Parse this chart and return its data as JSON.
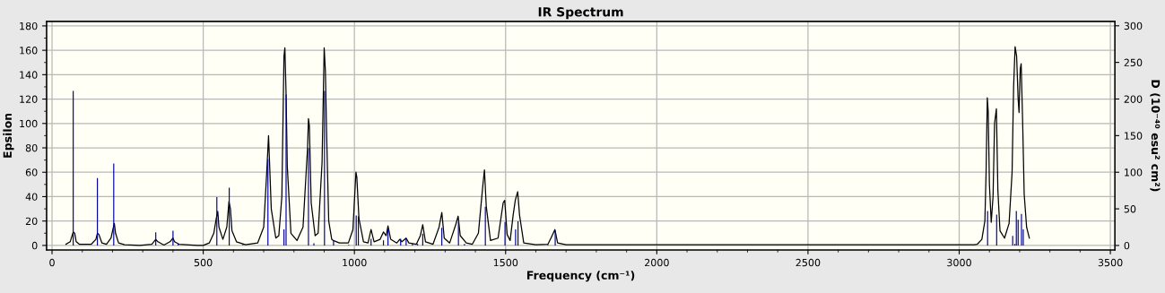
{
  "chart_data": {
    "type": "line",
    "title": "IR Spectrum",
    "xlabel": "Frequency (cm⁻¹)",
    "ylabel": "Epsilon",
    "y2label": "D (10⁻⁴⁰ esu² cm²)",
    "xlim": [
      -18,
      3515
    ],
    "ylim": [
      -3.7,
      183.7
    ],
    "y2lim": [
      -6.1,
      306
    ],
    "xticks": [
      0,
      {
        "value": 100,
        "label": null
      },
      {
        "value": 200,
        "label": null
      },
      {
        "value": 300,
        "label": null
      },
      {
        "value": 400,
        "label": null
      },
      500,
      {
        "value": 600,
        "label": null
      },
      {
        "value": 700,
        "label": null
      },
      {
        "value": 800,
        "label": null
      },
      {
        "value": 900,
        "label": null
      },
      1000,
      {
        "value": 1100,
        "label": null
      },
      {
        "value": 1200,
        "label": null
      },
      {
        "value": 1300,
        "label": null
      },
      {
        "value": 1400,
        "label": null
      },
      1500,
      {
        "value": 1600,
        "label": null
      },
      {
        "value": 1700,
        "label": null
      },
      {
        "value": 1800,
        "label": null
      },
      {
        "value": 1900,
        "label": null
      },
      2000,
      {
        "value": 2100,
        "label": null
      },
      {
        "value": 2200,
        "label": null
      },
      {
        "value": 2300,
        "label": null
      },
      {
        "value": 2400,
        "label": null
      },
      2500,
      {
        "value": 2600,
        "label": null
      },
      {
        "value": 2700,
        "label": null
      },
      {
        "value": 2800,
        "label": null
      },
      {
        "value": 2900,
        "label": null
      },
      3000,
      {
        "value": 3100,
        "label": null
      },
      {
        "value": 3200,
        "label": null
      },
      {
        "value": 3300,
        "label": null
      },
      {
        "value": 3400,
        "label": null
      },
      3500
    ],
    "yticks": [
      0,
      {
        "value": 10,
        "label": null
      },
      20,
      {
        "value": 30,
        "label": null
      },
      40,
      {
        "value": 50,
        "label": null
      },
      60,
      {
        "value": 70,
        "label": null
      },
      80,
      {
        "value": 90,
        "label": null
      },
      100,
      {
        "value": 110,
        "label": null
      },
      120,
      {
        "value": 130,
        "label": null
      },
      140,
      {
        "value": 150,
        "label": null
      },
      160,
      {
        "value": 170,
        "label": null
      },
      180
    ],
    "y2ticks": [
      0,
      50,
      100,
      150,
      200,
      250,
      300
    ],
    "grid": true,
    "series": [
      {
        "color": "#000000",
        "x": [
          46,
          60,
          70,
          75,
          80,
          90,
          130,
          145,
          150,
          155,
          165,
          180,
          195,
          202,
          206,
          210,
          220,
          240,
          290,
          330,
          343,
          350,
          370,
          390,
          400,
          405,
          420,
          480,
          500,
          520,
          535,
          543,
          548,
          552,
          565,
          578,
          585,
          590,
          595,
          610,
          640,
          680,
          700,
          710,
          714,
          716,
          719,
          725,
          740,
          750,
          760,
          767,
          770,
          774,
          778,
          790,
          810,
          830,
          845,
          848,
          851,
          857,
          870,
          880,
          893,
          900,
          904,
          908,
          915,
          925,
          930,
          950,
          980,
          995,
          1005,
          1008,
          1015,
          1030,
          1045,
          1055,
          1065,
          1085,
          1096,
          1105,
          1111,
          1120,
          1140,
          1150,
          1157,
          1171,
          1180,
          1205,
          1218,
          1226,
          1235,
          1260,
          1280,
          1289,
          1297,
          1315,
          1335,
          1343,
          1350,
          1370,
          1390,
          1410,
          1425,
          1430,
          1436,
          1450,
          1475,
          1492,
          1497,
          1505,
          1515,
          1525,
          1532,
          1540,
          1546,
          1560,
          1600,
          1640,
          1650,
          1663,
          1672,
          1700,
          3050,
          3060,
          3075,
          3085,
          3089,
          3093,
          3096,
          3100,
          3106,
          3112,
          3117,
          3123,
          3128,
          3135,
          3150,
          3165,
          3175,
          3180,
          3185,
          3190,
          3195,
          3198,
          3202,
          3205,
          3210,
          3215,
          3223,
          3232
        ],
        "values": [
          1,
          3,
          11,
          10,
          3,
          1,
          1,
          5,
          10,
          9,
          2,
          1,
          6,
          14,
          18,
          10,
          2,
          0.5,
          0,
          1,
          5,
          3,
          0.3,
          3,
          6,
          3,
          1,
          0,
          0,
          2,
          10,
          22,
          28,
          15,
          5,
          15,
          36,
          30,
          12,
          3,
          0.5,
          2,
          15,
          60,
          80,
          90,
          70,
          30,
          6,
          8,
          40,
          155,
          162,
          124,
          65,
          10,
          4,
          15,
          80,
          104,
          98,
          35,
          8,
          10,
          68,
          162,
          143,
          92,
          20,
          5,
          4,
          2,
          2,
          13,
          60,
          56,
          22,
          3,
          2,
          13,
          3,
          5,
          11,
          8,
          16,
          5,
          2,
          5,
          3,
          6,
          2,
          1,
          8,
          17,
          3,
          1,
          15,
          27,
          6,
          2,
          17,
          24,
          8,
          2,
          1,
          10,
          50,
          62,
          32,
          4,
          6,
          35,
          37,
          9,
          4,
          25,
          37,
          44,
          25,
          2,
          0.5,
          1,
          6,
          13,
          2,
          0.5,
          0.5,
          1,
          5,
          20,
          60,
          121,
          110,
          50,
          19,
          40,
          100,
          112,
          45,
          12,
          6,
          18,
          60,
          130,
          163,
          155,
          120,
          109,
          145,
          149,
          100,
          42,
          15,
          6
        ]
      },
      {
        "type": "bar",
        "axis": "y2",
        "color": "#0000a0",
        "x": [
          70,
          150,
          204,
          343,
          400,
          417,
          545,
          586,
          631,
          714,
          767,
          774,
          848,
          866,
          901,
          931,
          981,
          1006,
          1013,
          1055,
          1096,
          1111,
          1153,
          1171,
          1192,
          1209,
          1226,
          1289,
          1344,
          1364,
          1433,
          1498,
          1533,
          1541,
          1640,
          1664,
          3094,
          3124,
          3177,
          3184,
          3189,
          3195,
          3206,
          3212
        ],
        "values": [
          211,
          92,
          112,
          18,
          20,
          2,
          66,
          79,
          1,
          118,
          22,
          206,
          133,
          3,
          211,
          7,
          1,
          41,
          40,
          9,
          7,
          22,
          9,
          9,
          2,
          2,
          16,
          24,
          32,
          2,
          53,
          32,
          22,
          33,
          1,
          20,
          47,
          42,
          13,
          2,
          47,
          35,
          43,
          22
        ]
      }
    ]
  }
}
